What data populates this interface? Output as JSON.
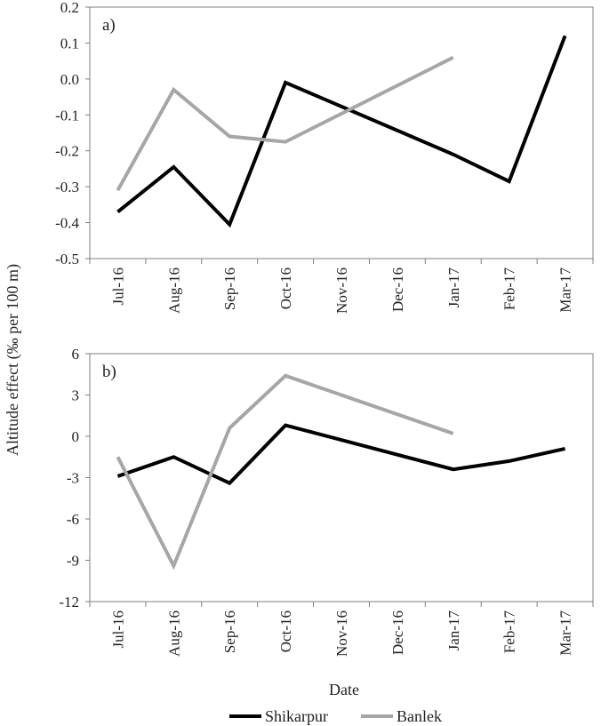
{
  "figure": {
    "shared_ylabel": "Altitude effect (‰ per 100 m)",
    "xlabel": "Date"
  },
  "chart_data": [
    {
      "type": "line",
      "panel_label": "a)",
      "categories": [
        "Jul-16",
        "Aug-16",
        "Sep-16",
        "Oct-16",
        "Nov-16",
        "Dec-16",
        "Jan-17",
        "Feb-17",
        "Mar-17"
      ],
      "ylim": [
        -0.5,
        0.2
      ],
      "yticks": [
        "-0.5",
        "-0.4",
        "-0.3",
        "-0.2",
        "-0.1",
        "0.0",
        "0.1",
        "0.2"
      ],
      "ytick_values": [
        -0.5,
        -0.4,
        -0.3,
        -0.2,
        -0.1,
        0.0,
        0.1,
        0.2
      ],
      "ylabel": "Altitude effect (‰ per 100 m)",
      "xlabel": "",
      "grid": false,
      "series": [
        {
          "name": "Shikarpur",
          "color": "#000000",
          "values": [
            -0.37,
            -0.245,
            -0.405,
            -0.01,
            null,
            null,
            -0.21,
            -0.285,
            0.12
          ]
        },
        {
          "name": "Banlek",
          "color": "#a6a6a6",
          "values": [
            -0.31,
            -0.03,
            -0.16,
            -0.175,
            null,
            null,
            0.06,
            null,
            null
          ]
        }
      ]
    },
    {
      "type": "line",
      "panel_label": "b)",
      "categories": [
        "Jul-16",
        "Aug-16",
        "Sep-16",
        "Oct-16",
        "Nov-16",
        "Dec-16",
        "Jan-17",
        "Feb-17",
        "Mar-17"
      ],
      "ylim": [
        -12,
        6
      ],
      "yticks": [
        "-12",
        "-9",
        "-6",
        "-3",
        "0",
        "3",
        "6"
      ],
      "ytick_values": [
        -12,
        -9,
        -6,
        -3,
        0,
        3,
        6
      ],
      "ylabel": "Altitude effect (‰ per 100 m)",
      "xlabel": "Date",
      "grid": false,
      "series": [
        {
          "name": "Shikarpur",
          "color": "#000000",
          "values": [
            -2.9,
            -1.5,
            -3.4,
            0.8,
            null,
            null,
            -2.4,
            -1.8,
            -0.9
          ]
        },
        {
          "name": "Banlek",
          "color": "#a6a6a6",
          "values": [
            -1.5,
            -9.4,
            0.6,
            4.4,
            null,
            null,
            0.2,
            null,
            null
          ]
        }
      ]
    }
  ],
  "legend": {
    "position": "bottom-center",
    "items": [
      {
        "label": "Shikarpur",
        "color": "#000000"
      },
      {
        "label": "Banlek",
        "color": "#a6a6a6"
      }
    ]
  }
}
